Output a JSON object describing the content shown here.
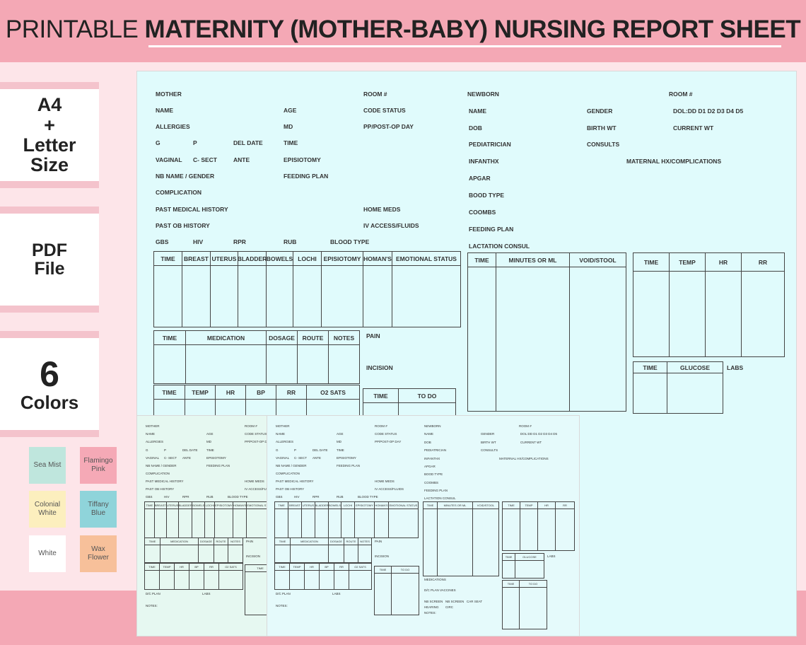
{
  "banner": {
    "title_thin": "PRINTABLE ",
    "title_bold": "MATERNITY (MOTHER-BABY) NURSING REPORT SHEET"
  },
  "badges": {
    "size": [
      "A4",
      "+",
      "Letter",
      "Size"
    ],
    "file": [
      "PDF",
      "File"
    ],
    "colors": [
      "6",
      "Colors"
    ]
  },
  "swatches": [
    {
      "label": "Sea Mist",
      "color": "#bfe6dd"
    },
    {
      "label": "Flamingo Pink",
      "color": "#f5a9b6"
    },
    {
      "label": "Colonial White",
      "color": "#fcefbe"
    },
    {
      "label": "Tiffany Blue",
      "color": "#8fd4da"
    },
    {
      "label": "White",
      "color": "#ffffff"
    },
    {
      "label": "Wax Flower",
      "color": "#f7c09a"
    }
  ],
  "sheet": {
    "mother": {
      "heading": "MOTHER",
      "name": "NAME",
      "allergies": "ALLERGIES",
      "g": "G",
      "p": "P",
      "del_date": "DEL DATE",
      "vaginal": "VAGINAL",
      "c_sect": "C- SECT",
      "ante": "ANTE",
      "nb_name_gender": "NB NAME / GENDER",
      "complication": "COMPLICATION",
      "past_medical_history": "PAST MEDICAL HISTORY",
      "past_ob_history": "PAST OB HISTORY",
      "gbs": "GBS",
      "hiv": "HIV",
      "rpr": "RPR",
      "rub": "RUB",
      "blood_type": "BLOOD TYPE",
      "age": "AGE",
      "md": "MD",
      "time": "TIME",
      "episiotomy": "EPISIOTOMY",
      "feeding_plan": "FEEDING PLAN",
      "room": "ROOM #",
      "code_status": "CODE STATUS",
      "pp_post_op_day": "PP/POST-OP DAY",
      "home_meds": "HOME MEDS",
      "iv_access_fluids": "IV ACCESS/FLUIDS",
      "pain": "PAIN",
      "incision": "INCISION"
    },
    "newborn": {
      "heading": "NEWBORN",
      "room": "ROOM #",
      "name": "NAME",
      "gender": "GENDER",
      "dol": "DOL:DD D1 D2 D3 D4 D5",
      "dob": "DOB",
      "birth_wt": "BIRTH WT",
      "current_wt": "CURRENT WT",
      "pediatrician": "PEDIATRICIAN",
      "consults": "CONSULTS",
      "infanthx": "INFANTHX",
      "maternal_hx": "MATERNAL HX/COMPLICATIONS",
      "apgar": "APGAR",
      "blood_type": "BOOD TYPE",
      "coombs": "COOMBS",
      "feeding_plan": "FEEDING PLAN",
      "lactation_consul": "LACTATION CONSUL",
      "labs": "LABS"
    },
    "tables": {
      "assessment": [
        "TIME",
        "BREAST",
        "UTERUS",
        "BLADDER",
        "BOWELS",
        "LOCHI",
        "EPISIOTOMY",
        "HOMAN'S",
        "EMOTIONAL STATUS"
      ],
      "medication": [
        "TIME",
        "MEDICATION",
        "DOSAGE",
        "ROUTE",
        "NOTES"
      ],
      "vitals": [
        "TIME",
        "TEMP",
        "HR",
        "BP",
        "RR",
        "O2 SATS"
      ],
      "todo": [
        "TIME",
        "TO DO"
      ],
      "feeding": [
        "TIME",
        "MINUTES OR ML",
        "VOID/STOOL"
      ],
      "nb_vitals": [
        "TIME",
        "TEMP",
        "HR",
        "RR"
      ],
      "glucose": [
        "TIME",
        "GLUCOSE"
      ]
    }
  },
  "mini": {
    "mother": "MOTHER",
    "room": "ROOM #",
    "name": "NAME",
    "age": "AGE",
    "code_status": "CODE STATUS",
    "allergies": "ALLERGIES",
    "md": "MD",
    "pp": "PP/POST-OP DAY",
    "g": "G",
    "p": "P",
    "del_date": "DEL DATE",
    "time": "TIME",
    "vaginal": "VAGINAL",
    "c_sect": "C- SECT",
    "ante": "ANTE",
    "episiotomy": "EPISIOTOMY",
    "nb_name": "NB NAME / GENDER",
    "feeding_plan": "FEEDING PLAN",
    "complication": "COMPLICATION",
    "pmh": "PAST MEDICAL HISTORY",
    "home_meds": "HOME MEDS",
    "poh": "PAST OB HISTORY",
    "iv": "IV ACCESS/FLUIDS",
    "gbs": "GBS",
    "hiv": "HIV",
    "rpr": "RPR",
    "rub": "RUB",
    "blood_type": "BLOOD TYPE",
    "pain": "PAIN",
    "incision": "INCISION",
    "dc_plan": "D/C PLAN",
    "labs": "LABS",
    "notes": "NOTES:",
    "newborn": "NEWBORN",
    "gender": "GENDER",
    "dol": "DOL:DD D1 D2 D3 D4 D5",
    "dob": "DOB",
    "birth_wt": "BIRTH WT",
    "current_wt": "CURRENT WT",
    "pediatrician": "PEDIATRICIAN",
    "consults": "CONSULTS",
    "infanthx": "INFANTHX",
    "maternal_hx": "MATERNAL HX/COMPLICATIONS",
    "apgar": "APGAR",
    "bood_type": "BOOD TYPE",
    "coombs": "COOMBS",
    "lactation": "LACTATION CONSUL",
    "medications": "MEDICATIONS",
    "dc_vaccines": "D/C PLAN VACCINES",
    "nb_screen": "NB SCREEN",
    "car_seat": "CAR SEAT",
    "hearing": "HEARING",
    "circ": "CIRC",
    "maternal_hx_cut": "AL HX/COMPLICATIONS"
  }
}
